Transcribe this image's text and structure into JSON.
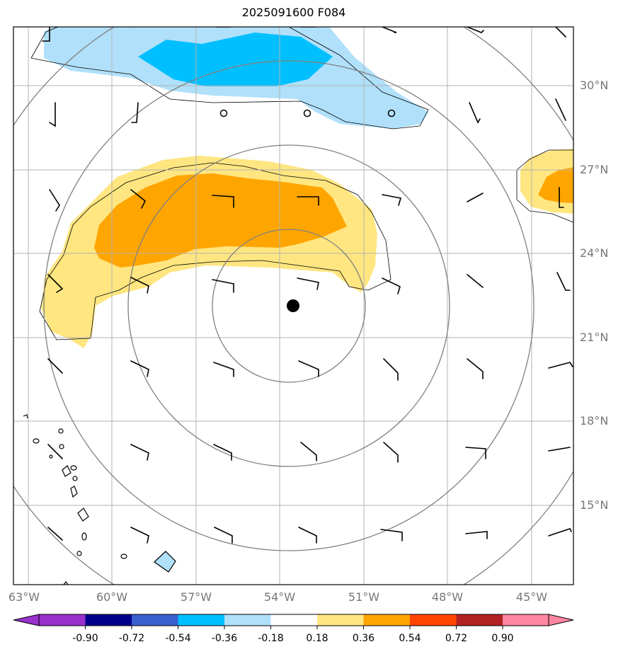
{
  "title": "2025091600 F084",
  "map": {
    "lon_ticks": [
      "63°W",
      "60°W",
      "57°W",
      "54°W",
      "51°W",
      "48°W",
      "45°W"
    ],
    "lat_ticks": [
      "30°N",
      "27°N",
      "24°N",
      "21°N",
      "18°N",
      "15°N"
    ],
    "lon_range": [
      -63.5,
      -43.5
    ],
    "lat_range": [
      12.2,
      32.3
    ],
    "storm_center": {
      "lon": -53.5,
      "lat": 22.1
    },
    "range_ring_center": {
      "lon": -54.0,
      "lat": 21.8
    },
    "range_rings_deg": [
      3,
      6,
      9,
      12
    ],
    "grid": true
  },
  "colorbar": {
    "levels": [
      "-0.90",
      "-0.72",
      "-0.54",
      "-0.36",
      "-0.18",
      "0.18",
      "0.36",
      "0.54",
      "0.72",
      "0.90"
    ],
    "colors": [
      "#9932cc",
      "#00008b",
      "#3a5fcd",
      "#00bfff",
      "#b0e0fa",
      "#ffffff",
      "#ffe680",
      "#ffa500",
      "#ff4500",
      "#b22222",
      "#ff85a2"
    ]
  },
  "chart_data": {
    "type": "map",
    "title": "2025091600 F084",
    "fields": [
      {
        "sign": "negative",
        "region": "north band 29-32°N, 63-49°W",
        "min_level": "-0.54"
      },
      {
        "sign": "positive",
        "region": "band 22-28°N, 62-50°W",
        "max_level": "0.54"
      },
      {
        "sign": "positive",
        "region": "east edge 25-27°N, 45-43.5°W",
        "max_level": "0.54"
      }
    ]
  }
}
